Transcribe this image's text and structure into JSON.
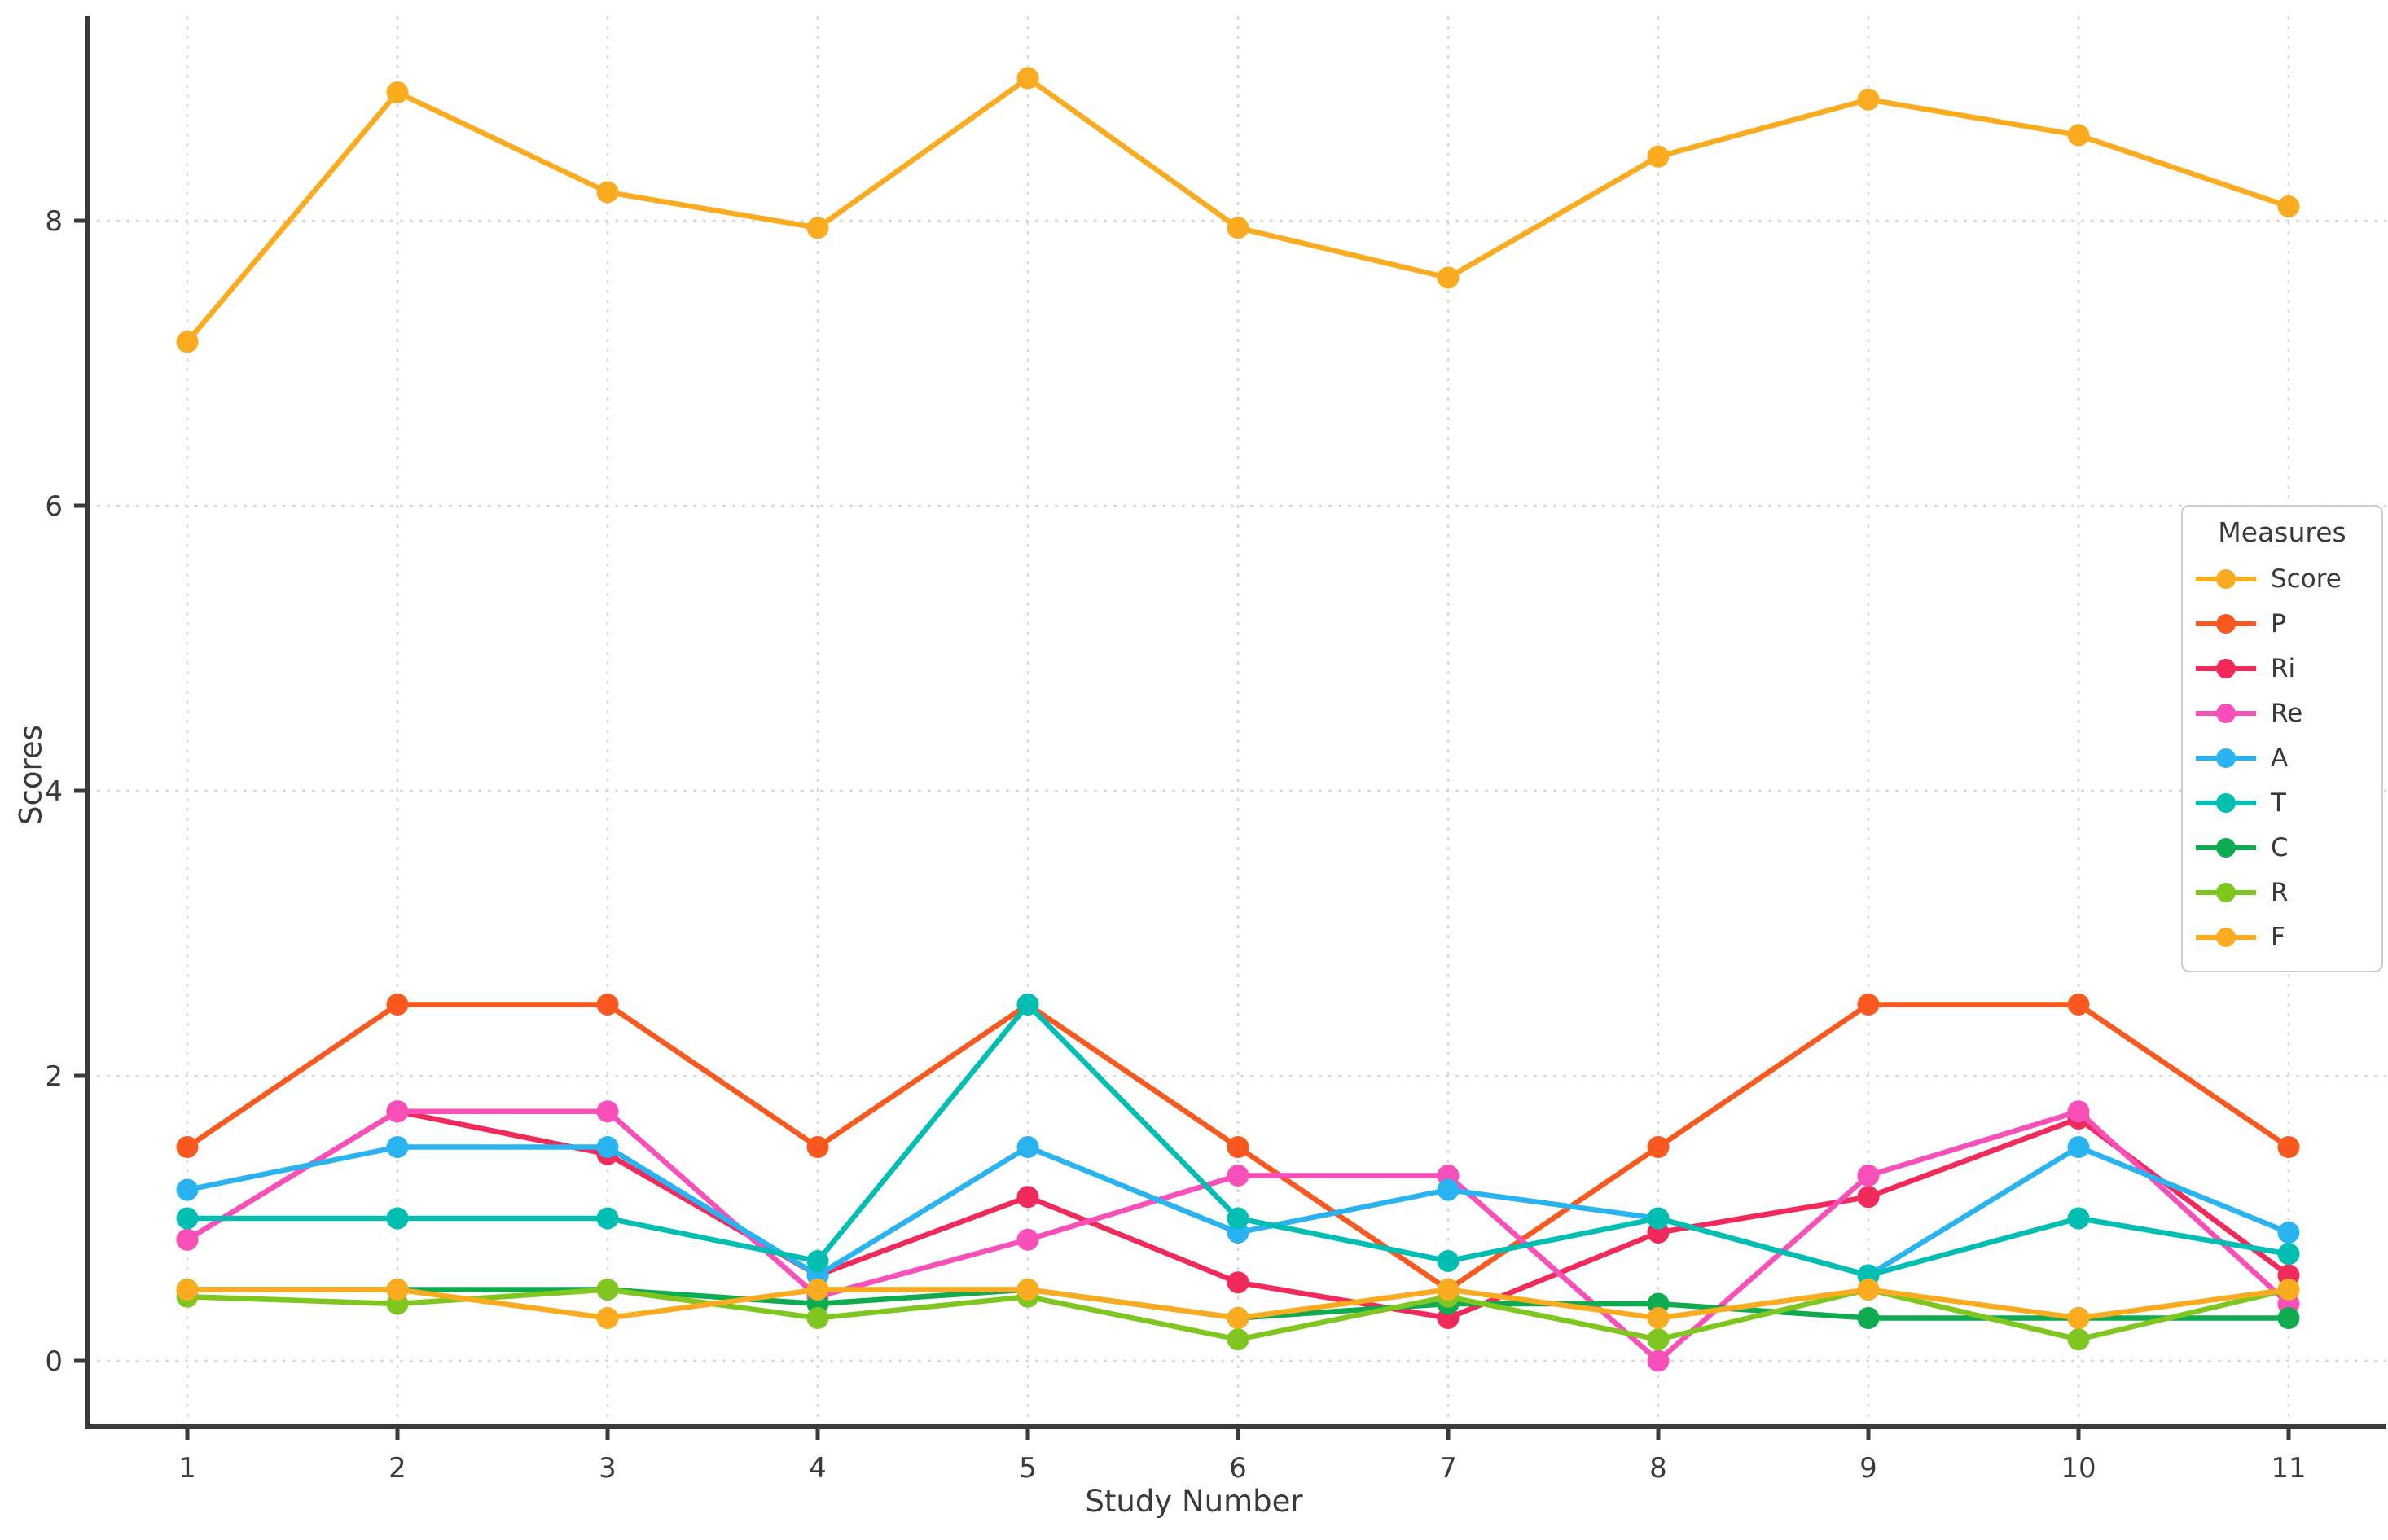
{
  "chart_data": {
    "type": "line",
    "title": "",
    "xlabel": "Study Number",
    "ylabel": "Scores",
    "legend_title": "Measures",
    "legend_position": "center right",
    "grid": true,
    "x": [
      1,
      2,
      3,
      4,
      5,
      6,
      7,
      8,
      9,
      10,
      11
    ],
    "xticks": [
      1,
      2,
      3,
      4,
      5,
      6,
      7,
      8,
      9,
      10,
      11
    ],
    "yticks": [
      0,
      2,
      4,
      6,
      8
    ],
    "ylim": [
      -0.46,
      9.42
    ],
    "series": [
      {
        "name": "Score",
        "color": "#FBAB1F",
        "values": [
          7.15,
          8.9,
          8.2,
          7.95,
          9.0,
          7.95,
          7.6,
          8.45,
          8.85,
          8.6,
          8.1
        ]
      },
      {
        "name": "P",
        "color": "#F9591E",
        "values": [
          1.5,
          2.5,
          2.5,
          1.5,
          2.5,
          1.5,
          0.5,
          1.5,
          2.5,
          2.5,
          1.5
        ]
      },
      {
        "name": "Ri",
        "color": "#F2295B",
        "values": [
          0.85,
          1.75,
          1.45,
          0.6,
          1.15,
          0.55,
          0.3,
          0.9,
          1.15,
          1.7,
          0.6
        ]
      },
      {
        "name": "Re",
        "color": "#F94FB8",
        "values": [
          0.85,
          1.75,
          1.75,
          0.45,
          0.85,
          1.3,
          1.3,
          0.0,
          1.3,
          1.75,
          0.4
        ]
      },
      {
        "name": "A",
        "color": "#29B3F0",
        "values": [
          1.2,
          1.5,
          1.5,
          0.6,
          1.5,
          0.9,
          1.2,
          1.0,
          0.6,
          1.5,
          0.9
        ]
      },
      {
        "name": "T",
        "color": "#00BEB2",
        "values": [
          1.0,
          1.0,
          1.0,
          0.7,
          2.5,
          1.0,
          0.7,
          1.0,
          0.6,
          1.0,
          0.75
        ]
      },
      {
        "name": "C",
        "color": "#0FAB51",
        "values": [
          0.5,
          0.5,
          0.5,
          0.4,
          0.5,
          0.3,
          0.4,
          0.4,
          0.3,
          0.3,
          0.3
        ]
      },
      {
        "name": "R",
        "color": "#7FC621",
        "values": [
          0.45,
          0.4,
          0.5,
          0.3,
          0.45,
          0.15,
          0.45,
          0.15,
          0.5,
          0.15,
          0.5
        ]
      },
      {
        "name": "F",
        "color": "#FBAB1F",
        "values": [
          0.5,
          0.5,
          0.3,
          0.5,
          0.5,
          0.3,
          0.5,
          0.3,
          0.5,
          0.3,
          0.5
        ]
      }
    ],
    "style": {
      "grid_color": "#d9d9d9",
      "spine_color": "#3a3a3a",
      "tick_label_size": 34,
      "line_width": 6.5,
      "marker_radius": 13.5
    }
  }
}
